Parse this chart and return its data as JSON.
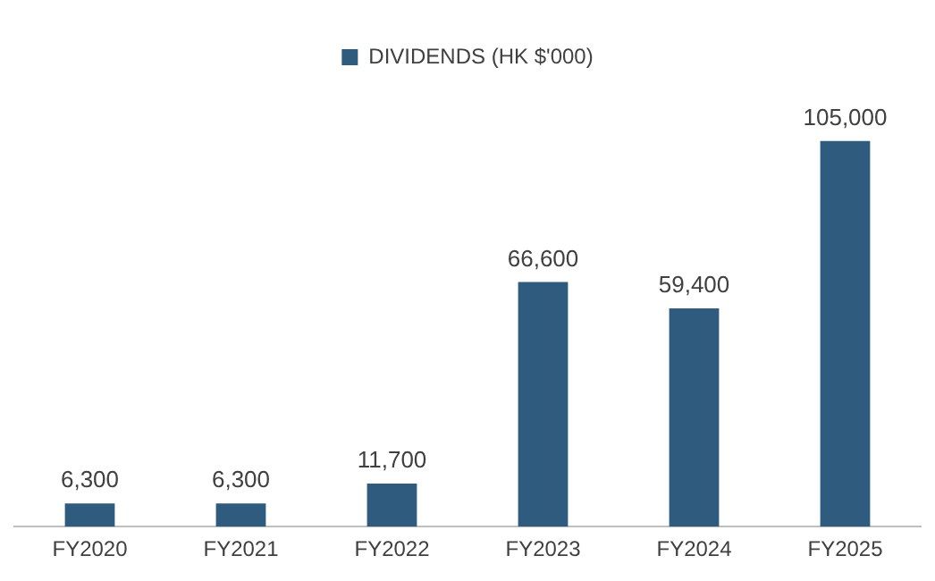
{
  "chart_data": {
    "type": "bar",
    "categories": [
      "FY2020",
      "FY2021",
      "FY2022",
      "FY2023",
      "FY2024",
      "FY2025"
    ],
    "series": [
      {
        "name": "DIVIDENDS (HK $'000)",
        "color": "#2e5b7e",
        "values": [
          6300,
          6300,
          11700,
          66600,
          59400,
          105000
        ],
        "value_labels": [
          "6,300",
          "6,300",
          "11,700",
          "66,600",
          "59,400",
          "105,000"
        ]
      }
    ],
    "legend": "top",
    "grid": false
  }
}
